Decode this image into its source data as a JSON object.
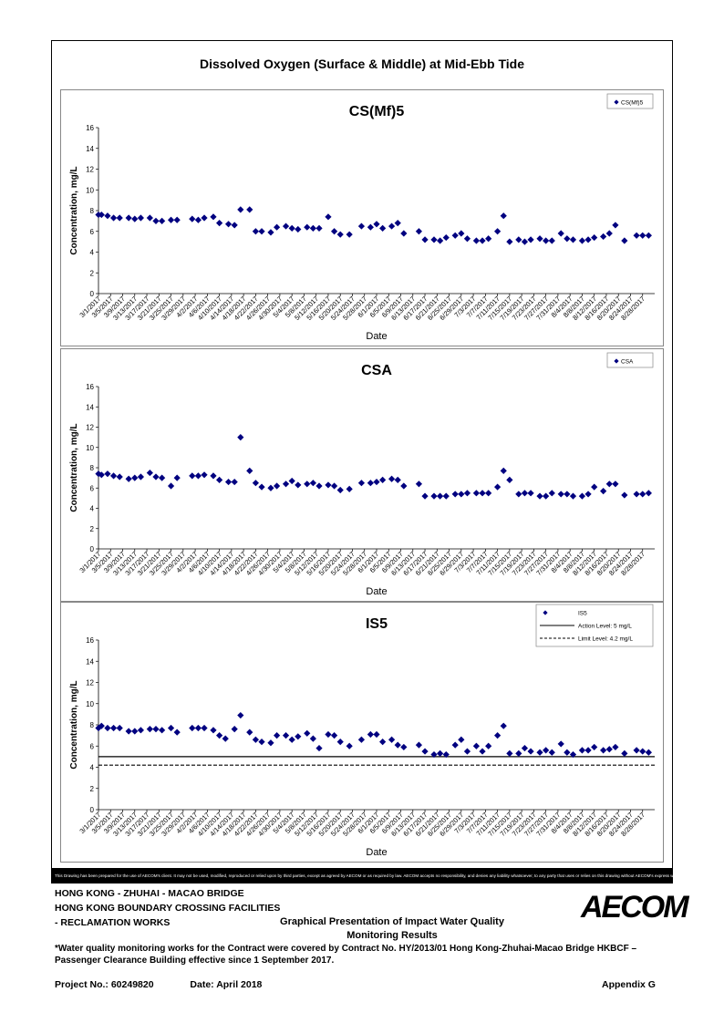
{
  "header": {
    "title": "Dissolved Oxygen (Surface & Middle) at Mid-Ebb Tide"
  },
  "footer": {
    "disclaimer": "This Drawing has been prepared for the use of AECOM's client. It may not be used, modified, reproduced or relied upon by third parties, except as agreed by AECOM or as required by law. AECOM accepts no responsibility, and denies any liability whatsoever, to any party that uses or relies on this drawing without AECOM's express written consent.",
    "project_line1": "HONG KONG - ZHUHAI - MACAO BRIDGE",
    "project_line2": "HONG KONG BOUNDARY CROSSING FACILITIES",
    "project_line3": "- RECLAMATION WORKS",
    "presentation_line1": "Graphical Presentation of Impact Water Quality",
    "presentation_line2": "Monitoring Results",
    "logo": "AECOM",
    "note": "*Water quality monitoring works for the Contract were covered by Contract No. HY/2013/01 Hong Kong-Zhuhai-Macao Bridge HKBCF – Passenger Clearance Building effective since 1 September 2017.",
    "project_no_label": "Project No.: 60249820",
    "date_label": "Date: April 2018",
    "appendix": "Appendix G"
  },
  "chart_data": [
    {
      "type": "scatter",
      "title": "CS(Mf)5",
      "xlabel": "Date",
      "ylabel": "Concentration, mg/L",
      "ylim": [
        0,
        16
      ],
      "yticks": [
        0,
        2,
        4,
        6,
        8,
        10,
        12,
        14,
        16
      ],
      "xticks": [
        "3/1/2017",
        "3/5/2017",
        "3/9/2017",
        "3/13/2017",
        "3/17/2017",
        "3/21/2017",
        "3/25/2017",
        "3/29/2017",
        "4/2/2017",
        "4/6/2017",
        "4/10/2017",
        "4/14/2017",
        "4/18/2017",
        "4/22/2017",
        "4/26/2017",
        "4/30/2017",
        "5/4/2017",
        "5/8/2017",
        "5/12/2017",
        "5/16/2017",
        "5/20/2017",
        "5/24/2017",
        "5/28/2017",
        "6/1/2017",
        "6/5/2017",
        "6/9/2017",
        "6/13/2017",
        "6/17/2017",
        "6/21/2017",
        "6/25/2017",
        "6/29/2017",
        "7/3/2017",
        "7/7/2017",
        "7/11/2017",
        "7/15/2017",
        "7/19/2017",
        "7/23/2017",
        "7/27/2017",
        "7/31/2017",
        "8/4/2017",
        "8/8/2017",
        "8/12/2017",
        "8/16/2017",
        "8/20/2017",
        "8/24/2017",
        "8/28/2017"
      ],
      "legend": {
        "position": "top-right",
        "entries": [
          "CS(Mf)5"
        ]
      },
      "series": [
        {
          "name": "CS(Mf)5",
          "marker": "diamond",
          "color": "#000080",
          "x": [
            "3/1/2017",
            "3/2/2017",
            "3/4/2017",
            "3/6/2017",
            "3/8/2017",
            "3/11/2017",
            "3/13/2017",
            "3/15/2017",
            "3/18/2017",
            "3/20/2017",
            "3/22/2017",
            "3/25/2017",
            "3/27/2017",
            "4/1/2017",
            "4/3/2017",
            "4/5/2017",
            "4/8/2017",
            "4/10/2017",
            "4/13/2017",
            "4/15/2017",
            "4/17/2017",
            "4/20/2017",
            "4/22/2017",
            "4/24/2017",
            "4/27/2017",
            "4/29/2017",
            "5/2/2017",
            "5/4/2017",
            "5/6/2017",
            "5/9/2017",
            "5/11/2017",
            "5/13/2017",
            "5/16/2017",
            "5/18/2017",
            "5/20/2017",
            "5/23/2017",
            "5/27/2017",
            "5/30/2017",
            "6/1/2017",
            "6/3/2017",
            "6/6/2017",
            "6/8/2017",
            "6/10/2017",
            "6/15/2017",
            "6/17/2017",
            "6/20/2017",
            "6/22/2017",
            "6/24/2017",
            "6/27/2017",
            "6/29/2017",
            "7/1/2017",
            "7/4/2017",
            "7/6/2017",
            "7/8/2017",
            "7/11/2017",
            "7/13/2017",
            "7/15/2017",
            "7/18/2017",
            "7/20/2017",
            "7/22/2017",
            "7/25/2017",
            "7/27/2017",
            "7/29/2017",
            "8/1/2017",
            "8/3/2017",
            "8/5/2017",
            "8/8/2017",
            "8/10/2017",
            "8/12/2017",
            "8/15/2017",
            "8/17/2017",
            "8/19/2017",
            "8/22/2017",
            "8/26/2017",
            "8/28/2017",
            "8/30/2017"
          ],
          "y": [
            7.6,
            7.6,
            7.5,
            7.3,
            7.3,
            7.3,
            7.2,
            7.3,
            7.3,
            7.0,
            7.0,
            7.1,
            7.1,
            7.2,
            7.1,
            7.3,
            7.4,
            6.8,
            6.7,
            6.6,
            8.1,
            8.1,
            6.0,
            6.0,
            5.9,
            6.4,
            6.5,
            6.3,
            6.2,
            6.4,
            6.3,
            6.3,
            7.4,
            6.0,
            5.7,
            5.7,
            6.5,
            6.4,
            6.7,
            6.3,
            6.5,
            6.8,
            5.8,
            6.0,
            5.2,
            5.2,
            5.1,
            5.4,
            5.6,
            5.8,
            5.3,
            5.1,
            5.1,
            5.3,
            6.0,
            7.5,
            5.0,
            5.2,
            5.0,
            5.2,
            5.3,
            5.1,
            5.1,
            5.8,
            5.3,
            5.2,
            5.1,
            5.2,
            5.4,
            5.5,
            5.8,
            6.6,
            5.1,
            5.6,
            5.6,
            5.6
          ]
        }
      ]
    },
    {
      "type": "scatter",
      "title": "CSA",
      "xlabel": "Date",
      "ylabel": "Concentration, mg/L",
      "ylim": [
        0,
        16
      ],
      "yticks": [
        0,
        2,
        4,
        6,
        8,
        10,
        12,
        14,
        16
      ],
      "xticks": [
        "3/1/2017",
        "3/5/2017",
        "3/9/2017",
        "3/13/2017",
        "3/17/2017",
        "3/21/2017",
        "3/25/2017",
        "3/29/2017",
        "4/2/2017",
        "4/6/2017",
        "4/10/2017",
        "4/14/2017",
        "4/18/2017",
        "4/22/2017",
        "4/26/2017",
        "4/30/2017",
        "5/4/2017",
        "5/8/2017",
        "5/12/2017",
        "5/16/2017",
        "5/20/2017",
        "5/24/2017",
        "5/28/2017",
        "6/1/2017",
        "6/5/2017",
        "6/9/2017",
        "6/13/2017",
        "6/17/2017",
        "6/21/2017",
        "6/25/2017",
        "6/29/2017",
        "7/3/2017",
        "7/7/2017",
        "7/11/2017",
        "7/15/2017",
        "7/19/2017",
        "7/23/2017",
        "7/27/2017",
        "7/31/2017",
        "8/4/2017",
        "8/8/2017",
        "8/12/2017",
        "8/16/2017",
        "8/20/2017",
        "8/24/2017",
        "8/28/2017"
      ],
      "legend": {
        "position": "top-right",
        "entries": [
          "CSA"
        ]
      },
      "series": [
        {
          "name": "CSA",
          "marker": "diamond",
          "color": "#000080",
          "x": [
            "3/1/2017",
            "3/2/2017",
            "3/4/2017",
            "3/6/2017",
            "3/8/2017",
            "3/11/2017",
            "3/13/2017",
            "3/15/2017",
            "3/18/2017",
            "3/20/2017",
            "3/22/2017",
            "3/25/2017",
            "3/27/2017",
            "4/1/2017",
            "4/3/2017",
            "4/5/2017",
            "4/8/2017",
            "4/10/2017",
            "4/13/2017",
            "4/15/2017",
            "4/17/2017",
            "4/20/2017",
            "4/22/2017",
            "4/24/2017",
            "4/27/2017",
            "4/29/2017",
            "5/2/2017",
            "5/4/2017",
            "5/6/2017",
            "5/9/2017",
            "5/11/2017",
            "5/13/2017",
            "5/16/2017",
            "5/18/2017",
            "5/20/2017",
            "5/23/2017",
            "5/27/2017",
            "5/30/2017",
            "6/1/2017",
            "6/3/2017",
            "6/6/2017",
            "6/8/2017",
            "6/10/2017",
            "6/15/2017",
            "6/17/2017",
            "6/20/2017",
            "6/22/2017",
            "6/24/2017",
            "6/27/2017",
            "6/29/2017",
            "7/1/2017",
            "7/4/2017",
            "7/6/2017",
            "7/8/2017",
            "7/11/2017",
            "7/13/2017",
            "7/15/2017",
            "7/18/2017",
            "7/20/2017",
            "7/22/2017",
            "7/25/2017",
            "7/27/2017",
            "7/29/2017",
            "8/1/2017",
            "8/3/2017",
            "8/5/2017",
            "8/8/2017",
            "8/10/2017",
            "8/12/2017",
            "8/15/2017",
            "8/17/2017",
            "8/19/2017",
            "8/22/2017",
            "8/26/2017",
            "8/28/2017",
            "8/30/2017"
          ],
          "y": [
            7.4,
            7.3,
            7.4,
            7.2,
            7.1,
            6.9,
            7.0,
            7.1,
            7.5,
            7.1,
            7.0,
            6.2,
            7.0,
            7.2,
            7.2,
            7.3,
            7.2,
            6.8,
            6.6,
            6.6,
            11.0,
            7.7,
            6.5,
            6.1,
            6.0,
            6.2,
            6.4,
            6.7,
            6.3,
            6.4,
            6.5,
            6.2,
            6.3,
            6.2,
            5.8,
            5.9,
            6.5,
            6.5,
            6.6,
            6.8,
            6.9,
            6.8,
            6.2,
            6.4,
            5.2,
            5.2,
            5.2,
            5.2,
            5.4,
            5.4,
            5.5,
            5.5,
            5.5,
            5.5,
            6.1,
            7.7,
            6.8,
            5.4,
            5.5,
            5.5,
            5.2,
            5.2,
            5.5,
            5.4,
            5.4,
            5.2,
            5.2,
            5.4,
            6.1,
            5.7,
            6.4,
            6.4,
            5.3,
            5.4,
            5.4,
            5.5
          ]
        }
      ]
    },
    {
      "type": "scatter",
      "title": "IS5",
      "xlabel": "Date",
      "ylabel": "Concentration, mg/L",
      "ylim": [
        0,
        16
      ],
      "yticks": [
        0,
        2,
        4,
        6,
        8,
        10,
        12,
        14,
        16
      ],
      "xticks": [
        "3/1/2017",
        "3/5/2017",
        "3/9/2017",
        "3/13/2017",
        "3/17/2017",
        "3/21/2017",
        "3/25/2017",
        "3/29/2017",
        "4/2/2017",
        "4/6/2017",
        "4/10/2017",
        "4/14/2017",
        "4/18/2017",
        "4/22/2017",
        "4/26/2017",
        "4/30/2017",
        "5/4/2017",
        "5/8/2017",
        "5/12/2017",
        "5/16/2017",
        "5/20/2017",
        "5/24/2017",
        "5/28/2017",
        "6/1/2017",
        "6/5/2017",
        "6/9/2017",
        "6/13/2017",
        "6/17/2017",
        "6/21/2017",
        "6/25/2017",
        "6/29/2017",
        "7/3/2017",
        "7/7/2017",
        "7/11/2017",
        "7/15/2017",
        "7/19/2017",
        "7/23/2017",
        "7/27/2017",
        "7/31/2017",
        "8/4/2017",
        "8/8/2017",
        "8/12/2017",
        "8/16/2017",
        "8/20/2017",
        "8/24/2017",
        "8/28/2017"
      ],
      "legend": {
        "position": "top-right",
        "entries": [
          "IS5",
          "Action Level: 5 mg/L",
          "Limit Level: 4.2 mg/L"
        ]
      },
      "reference_lines": [
        {
          "name": "Action Level: 5 mg/L",
          "y": 5,
          "style": "solid"
        },
        {
          "name": "Limit Level: 4.2 mg/L",
          "y": 4.2,
          "style": "dashed"
        }
      ],
      "series": [
        {
          "name": "IS5",
          "marker": "diamond",
          "color": "#000080",
          "x": [
            "3/1/2017",
            "3/2/2017",
            "3/4/2017",
            "3/6/2017",
            "3/8/2017",
            "3/11/2017",
            "3/13/2017",
            "3/15/2017",
            "3/18/2017",
            "3/20/2017",
            "3/22/2017",
            "3/25/2017",
            "3/27/2017",
            "4/1/2017",
            "4/3/2017",
            "4/5/2017",
            "4/8/2017",
            "4/10/2017",
            "4/12/2017",
            "4/15/2017",
            "4/17/2017",
            "4/20/2017",
            "4/22/2017",
            "4/24/2017",
            "4/27/2017",
            "4/29/2017",
            "5/2/2017",
            "5/4/2017",
            "5/6/2017",
            "5/9/2017",
            "5/11/2017",
            "5/13/2017",
            "5/16/2017",
            "5/18/2017",
            "5/20/2017",
            "5/23/2017",
            "5/27/2017",
            "5/30/2017",
            "6/1/2017",
            "6/3/2017",
            "6/6/2017",
            "6/8/2017",
            "6/10/2017",
            "6/15/2017",
            "6/17/2017",
            "6/20/2017",
            "6/22/2017",
            "6/24/2017",
            "6/27/2017",
            "6/29/2017",
            "7/1/2017",
            "7/4/2017",
            "7/6/2017",
            "7/8/2017",
            "7/11/2017",
            "7/13/2017",
            "7/15/2017",
            "7/18/2017",
            "7/20/2017",
            "7/22/2017",
            "7/25/2017",
            "7/27/2017",
            "7/29/2017",
            "8/1/2017",
            "8/3/2017",
            "8/5/2017",
            "8/8/2017",
            "8/10/2017",
            "8/12/2017",
            "8/15/2017",
            "8/17/2017",
            "8/19/2017",
            "8/22/2017",
            "8/26/2017",
            "8/28/2017",
            "8/30/2017"
          ],
          "y": [
            7.7,
            7.9,
            7.7,
            7.7,
            7.7,
            7.4,
            7.4,
            7.5,
            7.6,
            7.6,
            7.5,
            7.7,
            7.3,
            7.7,
            7.7,
            7.7,
            7.5,
            7.0,
            6.7,
            7.6,
            8.9,
            7.3,
            6.6,
            6.4,
            6.3,
            7.0,
            7.0,
            6.6,
            6.9,
            7.2,
            6.7,
            5.8,
            7.1,
            7.0,
            6.4,
            6.0,
            6.6,
            7.1,
            7.1,
            6.4,
            6.6,
            6.1,
            5.9,
            6.1,
            5.5,
            5.2,
            5.3,
            5.2,
            6.1,
            6.6,
            5.5,
            6.0,
            5.5,
            6.0,
            7.0,
            7.9,
            5.3,
            5.3,
            5.8,
            5.5,
            5.4,
            5.6,
            5.4,
            6.2,
            5.4,
            5.2,
            5.6,
            5.6,
            5.9,
            5.6,
            5.7,
            5.9,
            5.3,
            5.6,
            5.5,
            5.4
          ]
        }
      ]
    }
  ]
}
